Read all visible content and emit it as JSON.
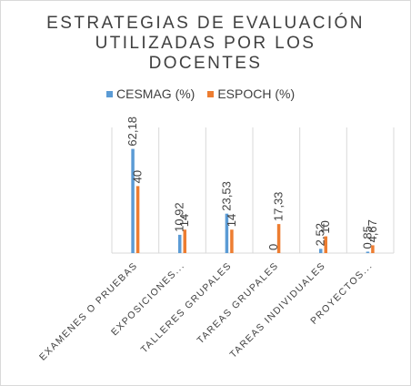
{
  "chart_data": {
    "type": "bar",
    "title_lines": [
      "ESTRATEGIAS DE EVALUACIÓN",
      "UTILIZADAS POR LOS",
      "DOCENTES"
    ],
    "categories": [
      "EXAMENES O PRUEBAS",
      "EXPOSICIONES...",
      "TALLERES GRUPALES",
      "TAREAS GRUPALES",
      "TAREAS INDIVIDUALES",
      "PROYECTOS..."
    ],
    "series": [
      {
        "name": "CESMAG (%)",
        "color": "#5b9bd5",
        "values": [
          62.18,
          10.92,
          23.53,
          0,
          2.52,
          0.85
        ],
        "labels": [
          "62,18",
          "10,92",
          "23,53",
          "0",
          "2,52",
          "0,85"
        ]
      },
      {
        "name": "ESPOCH (%)",
        "color": "#ed7d31",
        "values": [
          40,
          14,
          14,
          17.33,
          10,
          4.67
        ],
        "labels": [
          "40",
          "14",
          "14",
          "17,33",
          "10",
          "4,67"
        ]
      }
    ],
    "ylim": [
      0,
      75
    ],
    "grid": "vertical category separators",
    "legend": "top"
  }
}
